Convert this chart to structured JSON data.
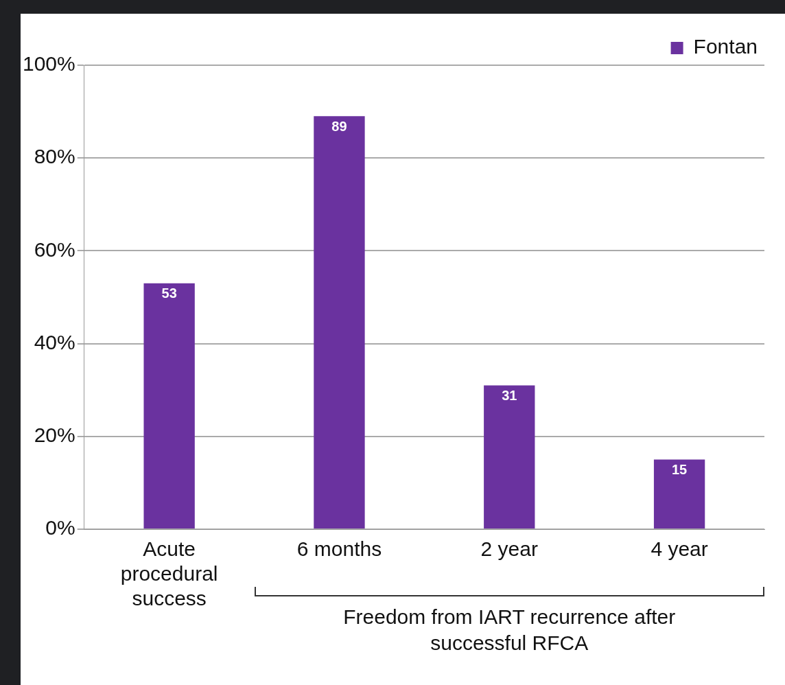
{
  "chart_data": {
    "type": "bar",
    "categories": [
      "Acute procedural success",
      "6 months",
      "2 year",
      "4 year"
    ],
    "series": [
      {
        "name": "Fontan",
        "color": "#6a329f",
        "values": [
          53,
          89,
          31,
          15
        ]
      }
    ],
    "ylim": [
      0,
      100
    ],
    "yticks": [
      {
        "value": 0,
        "label": "0%"
      },
      {
        "value": 20,
        "label": "20%"
      },
      {
        "value": 40,
        "label": "40%"
      },
      {
        "value": 60,
        "label": "60%"
      },
      {
        "value": 80,
        "label": "80%"
      },
      {
        "value": 100,
        "label": "100%"
      }
    ],
    "grid": "y",
    "legend": "top right",
    "data_labels": true,
    "annotations": [
      "Freedom from IART recurrence after successful RFCA"
    ]
  }
}
